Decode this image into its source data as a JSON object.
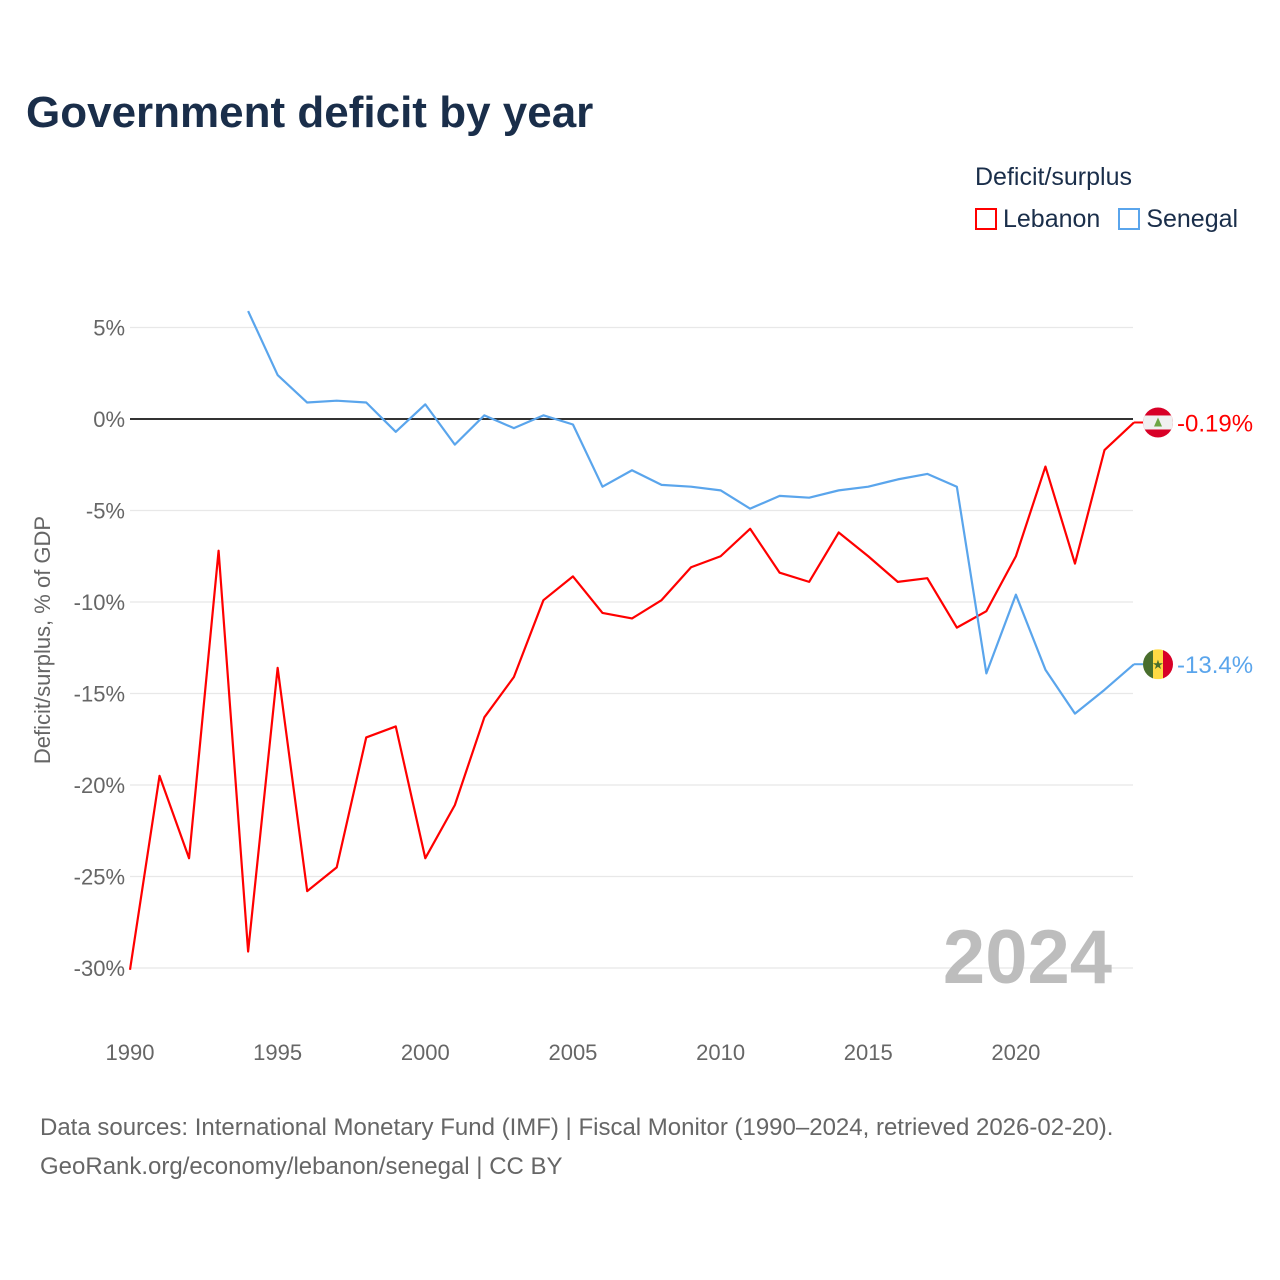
{
  "chart_data": {
    "type": "line",
    "title": "Government deficit by year",
    "ylabel": "Deficit/surplus, % of GDP",
    "xlabel": "",
    "xlim": [
      1990,
      2024
    ],
    "ylim": [
      -32,
      6
    ],
    "x_ticks": [
      1990,
      1995,
      2000,
      2005,
      2010,
      2015,
      2020
    ],
    "y_ticks": [
      5,
      0,
      -5,
      -10,
      -15,
      -20,
      -25,
      -30
    ],
    "y_tick_labels": [
      "5%",
      "0%",
      "-5%",
      "-10%",
      "-15%",
      "-20%",
      "-25%",
      "-30%"
    ],
    "legend_title": "Deficit/surplus",
    "legend_placement": "top-right",
    "year_watermark": "2024",
    "series": [
      {
        "name": "Lebanon",
        "color": "#ff0000",
        "end_label": "-0.19%",
        "flag": "lebanon-flag",
        "x": [
          1990,
          1991,
          1992,
          1993,
          1994,
          1995,
          1996,
          1997,
          1998,
          1999,
          2000,
          2001,
          2002,
          2003,
          2004,
          2005,
          2006,
          2007,
          2008,
          2009,
          2010,
          2011,
          2012,
          2013,
          2014,
          2015,
          2016,
          2017,
          2018,
          2019,
          2020,
          2021,
          2022,
          2023,
          2024
        ],
        "values": [
          -30.1,
          -19.5,
          -24.0,
          -7.2,
          -29.1,
          -13.6,
          -25.8,
          -24.5,
          -17.4,
          -16.8,
          -24.0,
          -21.1,
          -16.3,
          -14.1,
          -9.9,
          -8.6,
          -10.6,
          -10.9,
          -9.9,
          -8.1,
          -7.5,
          -6.0,
          -8.4,
          -8.9,
          -6.2,
          -7.5,
          -8.9,
          -8.7,
          -11.4,
          -10.5,
          -7.5,
          -2.6,
          -7.9,
          -1.7,
          -0.19
        ]
      },
      {
        "name": "Senegal",
        "color": "#5aa5ec",
        "end_label": "-13.4%",
        "flag": "senegal-flag",
        "x": [
          1994,
          1995,
          1996,
          1997,
          1998,
          1999,
          2000,
          2001,
          2002,
          2003,
          2004,
          2005,
          2006,
          2007,
          2008,
          2009,
          2010,
          2011,
          2012,
          2013,
          2014,
          2015,
          2016,
          2017,
          2018,
          2019,
          2020,
          2021,
          2022,
          2023,
          2024
        ],
        "values": [
          5.9,
          2.4,
          0.9,
          1.0,
          0.9,
          -0.7,
          0.8,
          -1.4,
          0.2,
          -0.5,
          0.2,
          -0.3,
          -3.7,
          -2.8,
          -3.6,
          -3.7,
          -3.9,
          -4.9,
          -4.2,
          -4.3,
          -3.9,
          -3.7,
          -3.3,
          -3.0,
          -3.7,
          -13.9,
          -9.6,
          -13.7,
          -16.1,
          -14.8,
          -13.4
        ]
      }
    ]
  },
  "footer": {
    "line1": "Data sources: International Monetary Fund (IMF) | Fiscal Monitor (1990–2024, retrieved 2026-02-20).",
    "line2": "GeoRank.org/economy/lebanon/senegal | CC BY"
  }
}
